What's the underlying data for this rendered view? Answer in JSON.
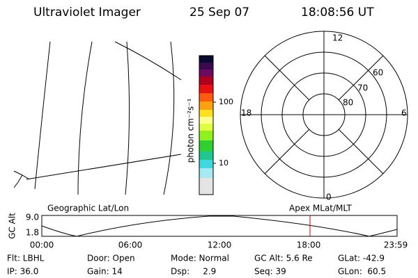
{
  "header": {
    "title": "Ultraviolet Imager",
    "date": "25 Sep 07",
    "time": "18:08:56 UT"
  },
  "colorbar": {
    "label": "photon cm⁻²s⁻¹",
    "ticks": [
      "100",
      "10"
    ]
  },
  "polar": {
    "clock": [
      "12",
      "6",
      "18",
      "0"
    ],
    "latitudes": [
      "60",
      "70",
      "80"
    ]
  },
  "timeline": {
    "ylabel": "GC Alt",
    "yticks": [
      "9.0",
      "1.8"
    ],
    "left_title": "Geographic Lat/Lon",
    "right_title": "Apex MLat/MLT",
    "xticks": [
      "00:00",
      "06:00",
      "12:00",
      "18:00",
      "23:59"
    ]
  },
  "status": {
    "rows": [
      [
        "Flt: LBHL",
        "Door: Open",
        "Mode: Normal",
        "GC Alt: 5.6 Re",
        "GLat: -42.9"
      ],
      [
        "IP: 36.0",
        "Gain: 14",
        "Dsp:     2.9",
        "Seq: 39",
        "GLon:  60.5"
      ]
    ]
  }
}
